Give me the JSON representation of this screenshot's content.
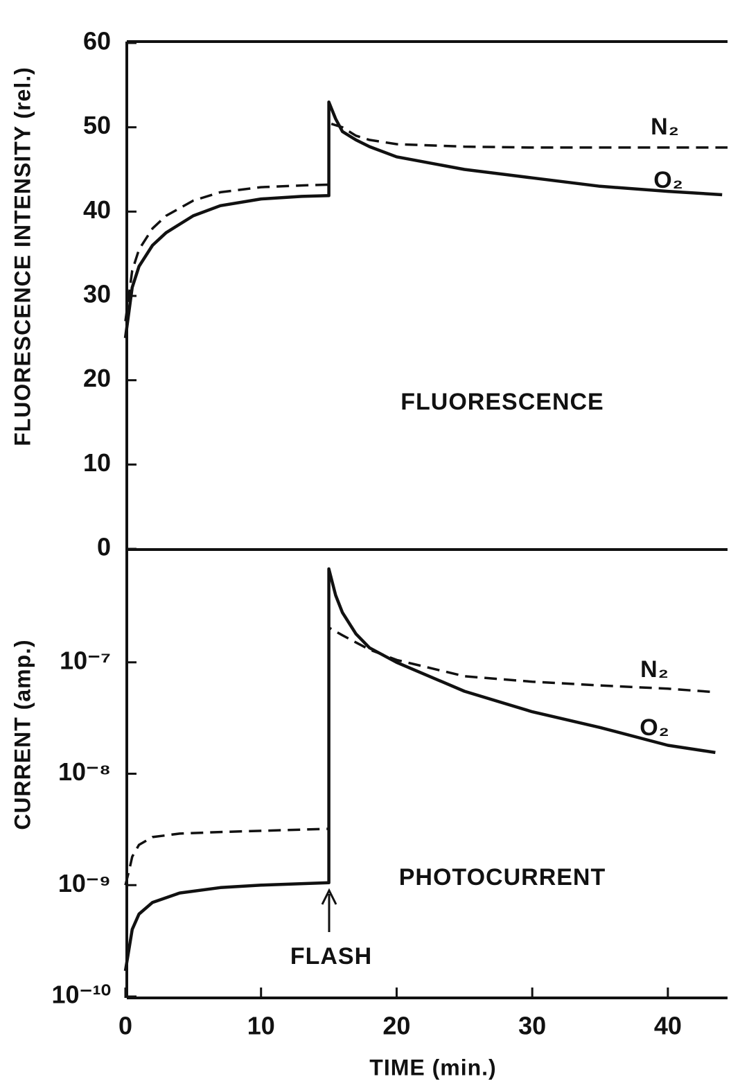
{
  "chart_data": [
    {
      "type": "line",
      "ylabel": "FLUORESCENCE INTENSITY (rel.)",
      "xlim": [
        0,
        44.4
      ],
      "ylim": [
        0,
        60
      ],
      "yticks": [
        0,
        10,
        20,
        30,
        40,
        50,
        60
      ],
      "annotations": [
        {
          "text": "FLUORESCENCE"
        },
        {
          "text": "N₂"
        },
        {
          "text": "O₂"
        }
      ],
      "series": [
        {
          "name": "N₂",
          "style": "dashed",
          "color": "#111111",
          "x": [
            0,
            0.5,
            1,
            2,
            3,
            5,
            7,
            10,
            13,
            15,
            15,
            16,
            17,
            18,
            20,
            25,
            30,
            44.4
          ],
          "values": [
            27,
            33,
            35.5,
            38,
            39.5,
            41.3,
            42.3,
            42.9,
            43.1,
            43.2,
            50.5,
            50,
            49,
            48.5,
            48,
            47.7,
            47.6,
            47.6
          ]
        },
        {
          "name": "O₂",
          "style": "solid",
          "color": "#111111",
          "x": [
            0,
            0.5,
            1,
            2,
            3,
            5,
            7,
            10,
            13,
            15,
            15,
            15.5,
            16,
            17,
            18,
            20,
            25,
            30,
            35,
            40,
            44
          ],
          "values": [
            25,
            31,
            33.5,
            36,
            37.5,
            39.5,
            40.7,
            41.5,
            41.8,
            41.9,
            53,
            51,
            49.5,
            48.5,
            47.7,
            46.5,
            45,
            44,
            43,
            42.4,
            42
          ]
        }
      ]
    },
    {
      "type": "line",
      "ylabel": "CURRENT (amp.)",
      "xlabel": "TIME (min.)",
      "yscale": "log",
      "xlim": [
        0,
        44.4
      ],
      "ylim": [
        1e-10,
        1e-06
      ],
      "xticks": [
        0,
        10,
        20,
        30,
        40
      ],
      "yticks": [
        {
          "value": 1e-10,
          "label": "10⁻¹⁰"
        },
        {
          "value": 1e-09,
          "label": "10⁻⁹"
        },
        {
          "value": 1e-08,
          "label": "10⁻⁸"
        },
        {
          "value": 1e-07,
          "label": "10⁻⁷"
        }
      ],
      "annotations": [
        {
          "text": "PHOTOCURRENT"
        },
        {
          "text": "FLASH"
        },
        {
          "text": "N₂"
        },
        {
          "text": "O₂"
        }
      ],
      "series": [
        {
          "name": "N₂",
          "style": "dashed",
          "color": "#111111",
          "x": [
            0,
            0.3,
            0.5,
            1,
            2,
            4,
            7,
            15,
            15,
            16,
            18,
            20,
            25,
            30,
            35,
            40,
            43.5
          ],
          "values": [
            1e-09,
            1.4e-09,
            1.8e-09,
            2.3e-09,
            2.7e-09,
            2.9e-09,
            3e-09,
            3.2e-09,
            2.05e-07,
            1.75e-07,
            1.3e-07,
            1.05e-07,
            7.5e-08,
            6.7e-08,
            6.2e-08,
            5.8e-08,
            5.4e-08
          ]
        },
        {
          "name": "O₂",
          "style": "solid",
          "color": "#111111",
          "x": [
            0,
            0.5,
            1,
            2,
            4,
            7,
            10,
            15,
            15,
            15.5,
            16,
            17,
            18,
            20,
            25,
            30,
            35,
            40,
            43.5
          ],
          "values": [
            1.7e-10,
            4e-10,
            5.5e-10,
            7e-10,
            8.5e-10,
            9.5e-10,
            1e-09,
            1.05e-09,
            6.9e-07,
            4e-07,
            2.8e-07,
            1.8e-07,
            1.35e-07,
            1e-07,
            5.5e-08,
            3.6e-08,
            2.6e-08,
            1.8e-08,
            1.55e-08
          ]
        }
      ]
    }
  ]
}
